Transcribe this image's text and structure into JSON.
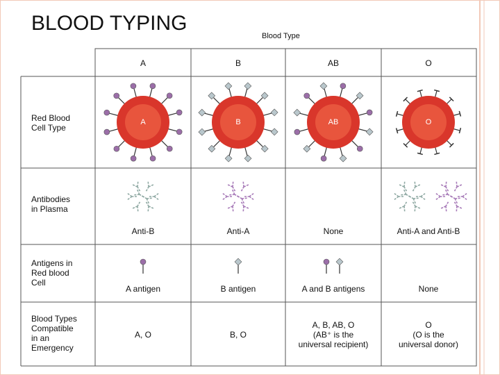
{
  "header": {
    "title": "BLOOD TYPING"
  },
  "table": {
    "caption": "Blood Type",
    "columns": [
      "A",
      "B",
      "AB",
      "O"
    ],
    "rows": [
      {
        "label": "Red Blood\nCell Type",
        "cells": [
          "A",
          "B",
          "AB",
          "O"
        ]
      },
      {
        "label": "Antibodies\nin Plasma",
        "cells": [
          "Anti-B",
          "Anti-A",
          "None",
          "Anti-A and Anti-B"
        ]
      },
      {
        "label": "Antigens in\nRed blood\nCell",
        "cells": [
          "A antigen",
          "B antigen",
          "A and B antigens",
          "None"
        ]
      },
      {
        "label": "Blood Types\nCompatible\nin an\nEmergency",
        "cells": [
          "A, O",
          "B, O",
          "A, B, AB, O\n(AB⁺ is the\nuniversal recipient)",
          "O\n(O is the\nuniversal donor)"
        ]
      }
    ]
  }
}
